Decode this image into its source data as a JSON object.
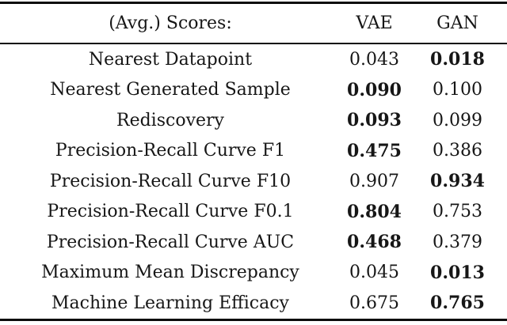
{
  "table": {
    "header": {
      "metric_label": "(Avg.) Scores:",
      "vae_label": "VAE",
      "gan_label": "GAN"
    },
    "rows": [
      {
        "metric": "Nearest Datapoint",
        "vae": "0.043",
        "gan": "0.018",
        "bold": "gan"
      },
      {
        "metric": "Nearest Generated Sample",
        "vae": "0.090",
        "gan": "0.100",
        "bold": "vae"
      },
      {
        "metric": "Rediscovery",
        "vae": "0.093",
        "gan": "0.099",
        "bold": "vae"
      },
      {
        "metric": "Precision-Recall Curve F1",
        "vae": "0.475",
        "gan": "0.386",
        "bold": "vae"
      },
      {
        "metric": "Precision-Recall Curve F10",
        "vae": "0.907",
        "gan": "0.934",
        "bold": "gan"
      },
      {
        "metric": "Precision-Recall Curve F0.1",
        "vae": "0.804",
        "gan": "0.753",
        "bold": "vae"
      },
      {
        "metric": "Precision-Recall Curve AUC",
        "vae": "0.468",
        "gan": "0.379",
        "bold": "vae"
      },
      {
        "metric": "Maximum Mean Discrepancy",
        "vae": "0.045",
        "gan": "0.013",
        "bold": "gan"
      },
      {
        "metric": "Machine Learning Efficacy",
        "vae": "0.675",
        "gan": "0.765",
        "bold": "gan"
      }
    ],
    "colors": {
      "text": "#161616",
      "rule": "#0c0c0c",
      "background": "#ffffff"
    }
  }
}
